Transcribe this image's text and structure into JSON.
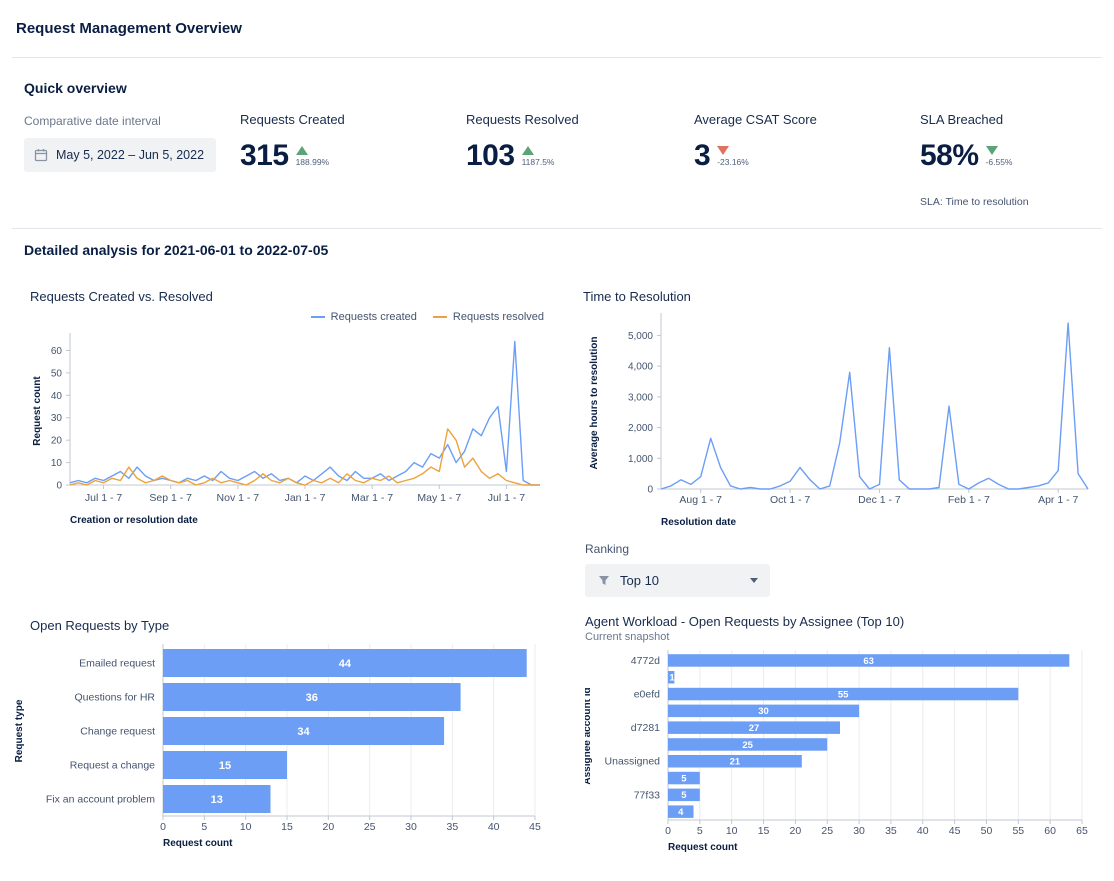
{
  "page": {
    "title": "Request Management Overview"
  },
  "colors": {
    "accent_blue": "#6C9EF5",
    "accent_orange": "#EDA23C",
    "positive": "#5BA47A",
    "negative": "#E0735E"
  },
  "quick_overview": {
    "heading": "Quick overview",
    "date_interval": {
      "label": "Comparative date interval",
      "value": "May 5, 2022 – Jun 5, 2022",
      "icon": "calendar"
    },
    "stats": [
      {
        "label": "Requests Created",
        "value": "315",
        "delta": "188.99%",
        "direction": "up",
        "trend_color": "#5BA47A"
      },
      {
        "label": "Requests Resolved",
        "value": "103",
        "delta": "1187.5%",
        "direction": "up",
        "trend_color": "#5BA47A"
      },
      {
        "label": "Average CSAT Score",
        "value": "3",
        "delta": "-23.16%",
        "direction": "down",
        "trend_color": "#E0735E"
      },
      {
        "label": "SLA Breached",
        "value": "58%",
        "delta": "-6.55%",
        "direction": "down",
        "trend_color": "#5BA47A",
        "note": "SLA: Time to resolution"
      }
    ]
  },
  "detailed": {
    "heading": "Detailed analysis for 2021-06-01 to 2022-07-05"
  },
  "ranking": {
    "label": "Ranking",
    "selected": "Top 10",
    "filter_icon": "funnel",
    "caret_icon": "chevron-down"
  },
  "chart_data": [
    {
      "id": "requests_created_vs_resolved",
      "type": "line",
      "title": "Requests Created vs. Resolved",
      "xlabel": "Creation or resolution date",
      "ylabel": "Request count",
      "ylim": [
        0,
        66
      ],
      "yticks": [
        0,
        10,
        20,
        30,
        40,
        50,
        60
      ],
      "ytick_labels": [
        "0",
        "10",
        "20",
        "30",
        "40",
        "50",
        "60"
      ],
      "xtick_labels": [
        "Jul 1 - 7",
        "Sep 1 - 7",
        "Nov 1 - 7",
        "Jan 1 - 7",
        "Mar 1 - 7",
        "May 1 - 7",
        "Jul 1 - 7"
      ],
      "xtick_indices": [
        4,
        12,
        20,
        28,
        36,
        44,
        52
      ],
      "legend_position": "top-right",
      "grid": false,
      "series": [
        {
          "name": "Requests created",
          "color": "#6C9EF5",
          "values": [
            1,
            2,
            1,
            3,
            2,
            4,
            6,
            3,
            8,
            4,
            2,
            3,
            2,
            1,
            3,
            2,
            4,
            2,
            6,
            3,
            2,
            4,
            6,
            3,
            5,
            2,
            3,
            1,
            4,
            2,
            5,
            8,
            4,
            2,
            6,
            3,
            3,
            5,
            2,
            4,
            6,
            10,
            8,
            14,
            12,
            18,
            10,
            15,
            25,
            22,
            30,
            35,
            6,
            64,
            2,
            0,
            0
          ]
        },
        {
          "name": "Requests resolved",
          "color": "#EDA23C",
          "values": [
            0,
            1,
            0,
            2,
            1,
            3,
            2,
            8,
            3,
            1,
            2,
            4,
            2,
            1,
            2,
            0,
            1,
            3,
            1,
            2,
            1,
            0,
            2,
            5,
            2,
            1,
            3,
            1,
            0,
            2,
            1,
            3,
            1,
            5,
            2,
            1,
            3,
            2,
            4,
            1,
            2,
            3,
            5,
            8,
            6,
            25,
            20,
            8,
            12,
            6,
            3,
            5,
            2,
            1,
            0,
            0,
            0
          ]
        }
      ]
    },
    {
      "id": "time_to_resolution",
      "type": "line",
      "title": "Time to Resolution",
      "xlabel": "Resolution date",
      "ylabel": "Average hours to resolution",
      "ylim": [
        0,
        5600
      ],
      "yticks": [
        0,
        1000,
        2000,
        3000,
        4000,
        5000
      ],
      "ytick_labels": [
        "0",
        "1,000",
        "2,000",
        "3,000",
        "4,000",
        "5,000"
      ],
      "xtick_labels": [
        "Aug 1 - 7",
        "Oct 1 - 7",
        "Dec 1 - 7",
        "Feb 1 - 7",
        "Apr 1 - 7"
      ],
      "xtick_indices": [
        4,
        13,
        22,
        31,
        40
      ],
      "grid": false,
      "series": [
        {
          "name": "Average hours to resolution",
          "color": "#6C9EF5",
          "values": [
            0,
            100,
            300,
            150,
            400,
            1650,
            700,
            100,
            0,
            50,
            0,
            0,
            100,
            250,
            700,
            300,
            0,
            100,
            1500,
            3800,
            400,
            0,
            150,
            4600,
            300,
            0,
            0,
            0,
            50,
            2700,
            150,
            0,
            200,
            350,
            150,
            0,
            0,
            50,
            100,
            200,
            600,
            5400,
            500,
            0
          ]
        }
      ]
    },
    {
      "id": "open_requests_by_type",
      "type": "bar",
      "orientation": "horizontal",
      "title": "Open Requests by Type",
      "xlabel": "Request count",
      "ylabel": "Request type",
      "categories": [
        "Emailed request",
        "Questions for HR",
        "Change request",
        "Request a change",
        "Fix an account problem"
      ],
      "values": [
        44,
        36,
        34,
        15,
        13
      ],
      "xlim": [
        0,
        45
      ],
      "xticks": [
        0,
        5,
        10,
        15,
        20,
        25,
        30,
        35,
        40,
        45
      ],
      "bar_color": "#6C9EF5",
      "grid": true
    },
    {
      "id": "agent_workload",
      "type": "bar",
      "orientation": "horizontal",
      "title": "Agent Workload - Open Requests by Assignee (Top 10)",
      "subtitle": "Current snapshot",
      "xlabel": "Request count",
      "ylabel": "Assignee account id",
      "categories": [
        "4772d",
        "",
        "e0efd",
        "",
        "d7281",
        "",
        "Unassigned",
        "",
        "77f33",
        ""
      ],
      "values": [
        63,
        1,
        55,
        30,
        27,
        25,
        21,
        5,
        5,
        4
      ],
      "xlim": [
        0,
        65
      ],
      "xticks": [
        0,
        5,
        10,
        15,
        20,
        25,
        30,
        35,
        40,
        45,
        50,
        55,
        60,
        65
      ],
      "bar_color": "#6C9EF5",
      "grid": true
    }
  ]
}
